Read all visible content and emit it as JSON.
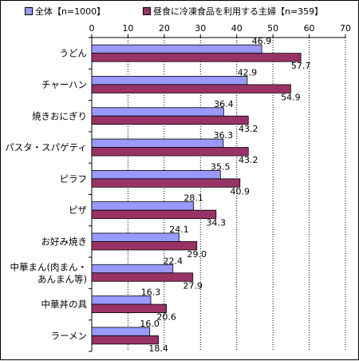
{
  "chart_data": {
    "type": "bar",
    "orientation": "horizontal",
    "categories": [
      "うどん",
      "チャーハン",
      "焼きおにぎり",
      "パスタ・スパゲティ",
      "ピラフ",
      "ピザ",
      "お好み焼き",
      "中華まん(肉まん・あんまん等)",
      "中華丼の具",
      "ラーメン"
    ],
    "category_label_lines": [
      [
        "うどん"
      ],
      [
        "チャーハン"
      ],
      [
        "焼きおにぎり"
      ],
      [
        "パスタ・スパゲティ"
      ],
      [
        "ピラフ"
      ],
      [
        "ピザ"
      ],
      [
        "お好み焼き"
      ],
      [
        "中華まん(肉まん・",
        "あんまん等)"
      ],
      [
        "中華丼の具"
      ],
      [
        "ラーメン"
      ]
    ],
    "series": [
      {
        "name": "全体【n=1000】",
        "color": "#9999ff",
        "values": [
          46.9,
          42.9,
          36.4,
          36.3,
          35.5,
          28.1,
          24.1,
          22.4,
          16.3,
          16.0
        ]
      },
      {
        "name": "昼食に冷凍食品を利用する主婦【n=359】",
        "color": "#993366",
        "values": [
          57.7,
          54.9,
          43.2,
          43.2,
          40.9,
          34.3,
          29.0,
          27.9,
          20.6,
          18.4
        ]
      }
    ],
    "x_ticks": [
      "0",
      "10",
      "20",
      "30",
      "40",
      "50",
      "60",
      "70"
    ],
    "xlim": [
      0,
      70
    ],
    "axis_position": "top",
    "grid": true,
    "legend_position": "top"
  }
}
